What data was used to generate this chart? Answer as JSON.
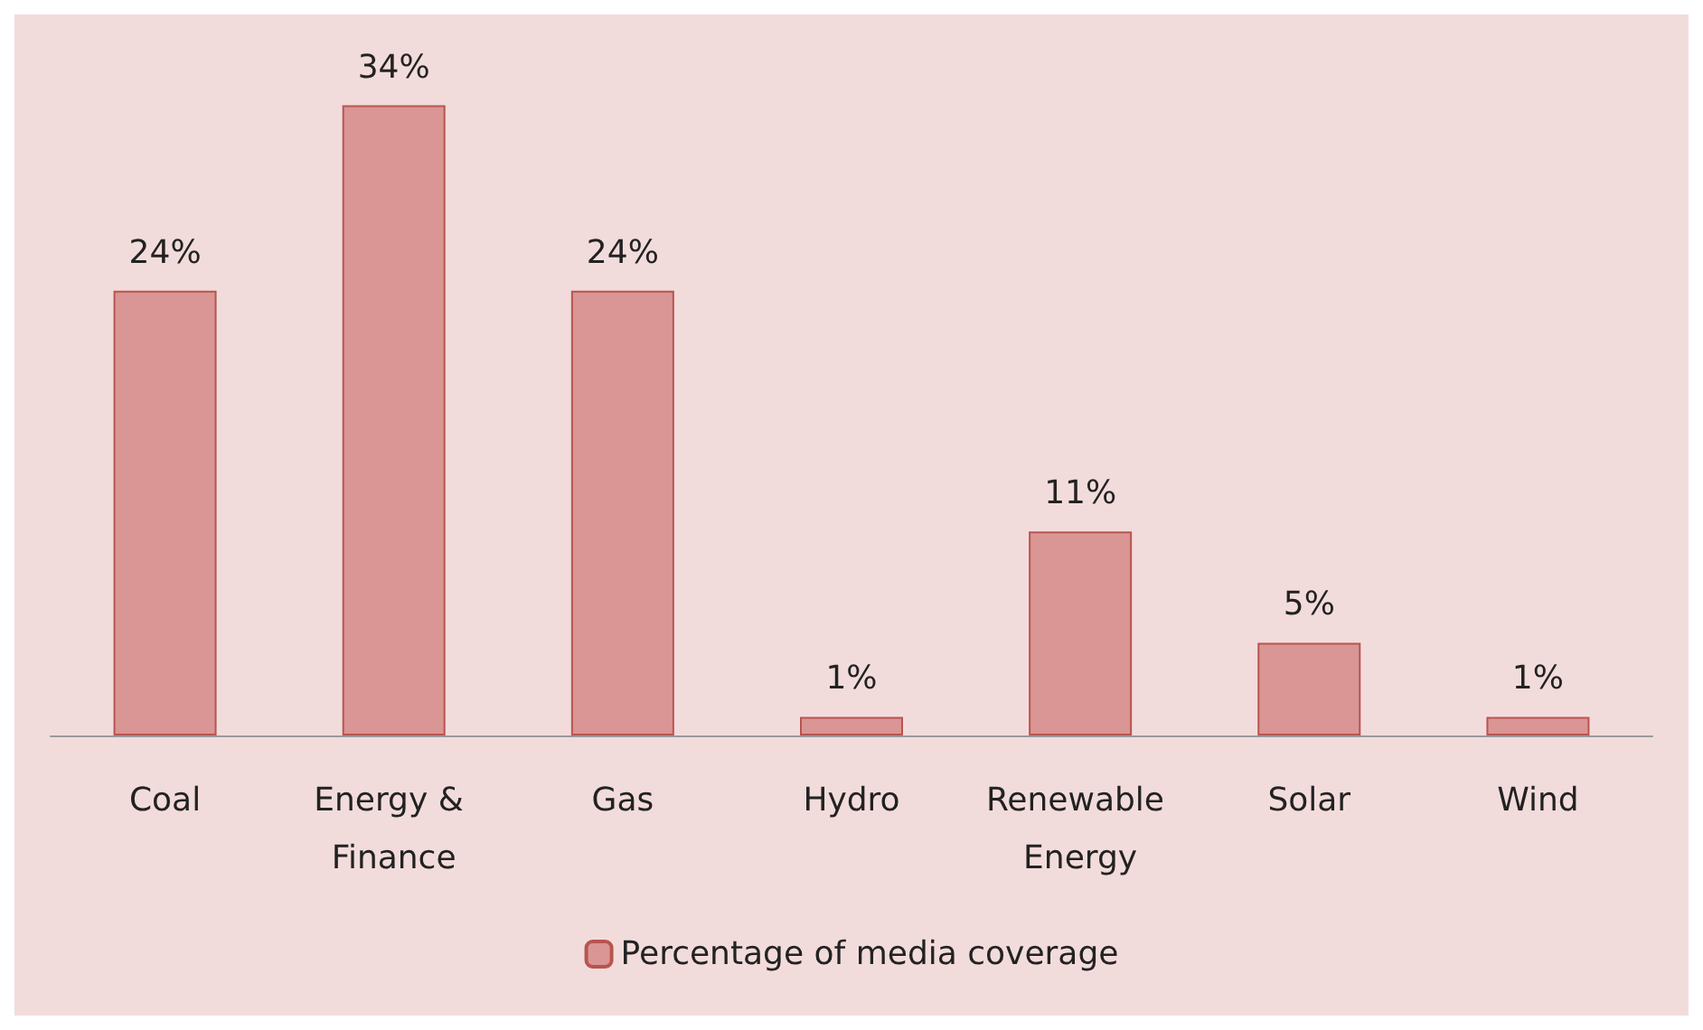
{
  "chart_data": {
    "type": "bar",
    "categories": [
      "Coal",
      "Energy & Finance",
      "Gas",
      "Hydro",
      "Renewable Energy",
      "Solar",
      "Wind"
    ],
    "series": [
      {
        "name": "Percentage of media coverage",
        "color": "#d99694",
        "values": [
          24,
          34,
          24,
          1,
          11,
          5,
          1
        ],
        "value_labels": [
          "24%",
          "34%",
          "24%",
          "1%",
          "11%",
          "5%",
          "1%"
        ]
      }
    ],
    "legend": "bottom"
  }
}
